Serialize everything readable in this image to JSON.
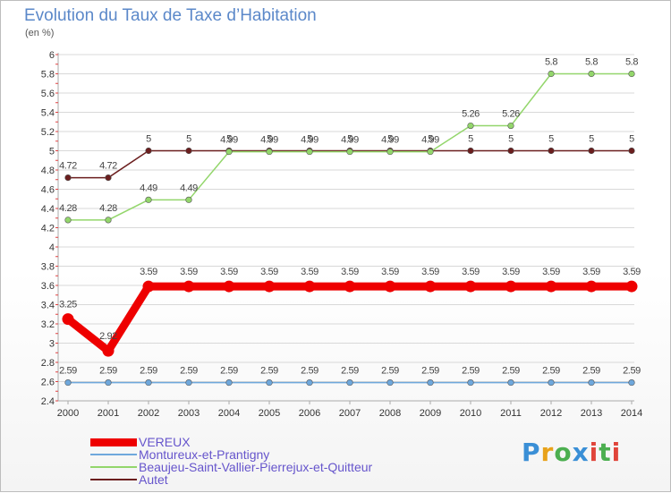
{
  "title": "Evolution du Taux de Taxe d’Habitation",
  "subtitle": "(en %)",
  "logo": {
    "text": "Proxiti",
    "colors": [
      "#3a8fd6",
      "#e8a21a",
      "#4caf50",
      "#e0443a"
    ]
  },
  "chart_data": {
    "type": "line",
    "title": "Evolution du Taux de Taxe d’Habitation",
    "ylabel": "(en %)",
    "xlabel": "",
    "ylim": [
      2.4,
      6
    ],
    "y_ticks": [
      "2.4",
      "2.6",
      "2.8",
      "3",
      "3.2",
      "3.4",
      "3.6",
      "3.8",
      "4",
      "4.2",
      "4.4",
      "4.6",
      "4.8",
      "5",
      "5.2",
      "5.4",
      "5.6",
      "5.8",
      "6"
    ],
    "x": [
      "2000",
      "2001",
      "2002",
      "2003",
      "2004",
      "2005",
      "2006",
      "2007",
      "2008",
      "2009",
      "2010",
      "2011",
      "2012",
      "2013",
      "2014"
    ],
    "grid": "horizontal",
    "legend_position": "bottom-left",
    "series": [
      {
        "name": "Autet",
        "color": "#6b1e1e",
        "values": [
          4.72,
          4.72,
          5,
          5,
          5,
          5,
          5,
          5,
          5,
          5,
          5,
          5,
          5,
          5,
          5
        ],
        "labels": [
          "4.72",
          "4.72",
          "5",
          "5",
          "5",
          "5",
          "5",
          "5",
          "5",
          "5",
          "5",
          "5",
          "5",
          "5",
          "5"
        ]
      },
      {
        "name": "Beaujeu-Saint-Vallier-Pierrejux-et-Quitteur",
        "color": "#93d66b",
        "values": [
          4.28,
          4.28,
          4.49,
          4.49,
          4.99,
          4.99,
          4.99,
          4.99,
          4.99,
          4.99,
          5.26,
          5.26,
          5.8,
          5.8,
          5.8
        ],
        "labels": [
          "4.28",
          "4.28",
          "4.49",
          "4.49",
          "4.99",
          "4.99",
          "4.99",
          "4.99",
          "4.99",
          "4.99",
          "5.26",
          "5.26",
          "5.8",
          "5.8",
          "5.8"
        ]
      },
      {
        "name": "VEREUX",
        "color": "#ee0000",
        "values": [
          3.25,
          2.92,
          3.59,
          3.59,
          3.59,
          3.59,
          3.59,
          3.59,
          3.59,
          3.59,
          3.59,
          3.59,
          3.59,
          3.59,
          3.59
        ],
        "labels": [
          "3.25",
          "2.92",
          "3.59",
          "3.59",
          "3.59",
          "3.59",
          "3.59",
          "3.59",
          "3.59",
          "3.59",
          "3.59",
          "3.59",
          "3.59",
          "3.59",
          "3.59"
        ]
      },
      {
        "name": "Montureux-et-Prantigny",
        "color": "#6fa8dc",
        "values": [
          2.59,
          2.59,
          2.59,
          2.59,
          2.59,
          2.59,
          2.59,
          2.59,
          2.59,
          2.59,
          2.59,
          2.59,
          2.59,
          2.59,
          2.59
        ],
        "labels": [
          "2.59",
          "2.59",
          "2.59",
          "2.59",
          "2.59",
          "2.59",
          "2.59",
          "2.59",
          "2.59",
          "2.59",
          "2.59",
          "2.59",
          "2.59",
          "2.59",
          "2.59"
        ]
      }
    ],
    "legend": [
      {
        "name": "VEREUX",
        "color": "#ee0000",
        "text_color": "#6655cc"
      },
      {
        "name": "Montureux-et-Prantigny",
        "color": "#6fa8dc",
        "text_color": "#6655cc"
      },
      {
        "name": "Beaujeu-Saint-Vallier-Pierrejux-et-Quitteur",
        "color": "#93d66b",
        "text_color": "#6655cc"
      },
      {
        "name": "Autet",
        "color": "#6b1e1e",
        "text_color": "#6655cc"
      }
    ]
  }
}
